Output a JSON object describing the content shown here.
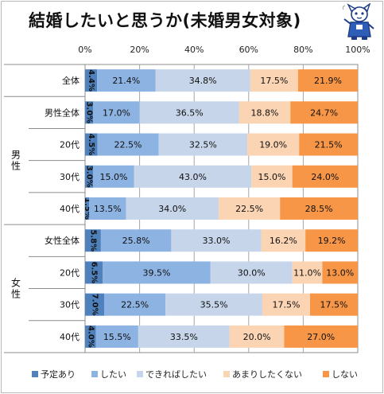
{
  "title": "結婚したいと思うか(未婚男女対象)",
  "chart_data": {
    "type": "bar",
    "stacked": true,
    "orientation": "horizontal",
    "xlim": [
      0,
      100
    ],
    "x_ticks": [
      "0%",
      "20%",
      "40%",
      "60%",
      "80%",
      "100%"
    ],
    "grid": true,
    "legend_position": "bottom",
    "groups": [
      {
        "label": "",
        "rows": [
          0
        ]
      },
      {
        "label": "男性",
        "rows": [
          1,
          2,
          3,
          4
        ]
      },
      {
        "label": "女性",
        "rows": [
          5,
          6,
          7,
          8
        ]
      }
    ],
    "categories": [
      "全体",
      "男性全体",
      "20代",
      "30代",
      "40代",
      "女性全体",
      "20代",
      "30代",
      "40代"
    ],
    "series": [
      {
        "name": "予定あり",
        "color": "#4f81bd",
        "values": [
          4.4,
          3.0,
          4.5,
          3.0,
          1.5,
          5.8,
          6.5,
          7.0,
          4.0
        ],
        "labels": [
          "4.4%",
          "3.0%",
          "4.5%",
          "3.0%",
          "1.5%",
          "5.8%",
          "6.5%",
          "7.0%",
          "4.0%"
        ]
      },
      {
        "name": "したい",
        "color": "#8db3e2",
        "values": [
          21.4,
          17.0,
          22.5,
          15.0,
          13.5,
          25.8,
          39.5,
          22.5,
          15.5
        ],
        "labels": [
          "21.4%",
          "17.0%",
          "22.5%",
          "15.0%",
          "13.5%",
          "25.8%",
          "39.5%",
          "22.5%",
          "15.5%"
        ]
      },
      {
        "name": "できればしたい",
        "color": "#c6d5ea",
        "values": [
          34.8,
          36.5,
          32.5,
          43.0,
          34.0,
          33.0,
          30.0,
          35.5,
          33.5
        ],
        "labels": [
          "34.8%",
          "36.5%",
          "32.5%",
          "43.0%",
          "34.0%",
          "33.0%",
          "30.0%",
          "35.5%",
          "33.5%"
        ]
      },
      {
        "name": "あまりしたくない",
        "color": "#fbd4b4",
        "values": [
          17.5,
          18.8,
          19.0,
          15.0,
          22.5,
          16.2,
          11.0,
          17.5,
          20.0
        ],
        "labels": [
          "17.5%",
          "18.8%",
          "19.0%",
          "15.0%",
          "22.5%",
          "16.2%",
          "11.0%",
          "17.5%",
          "20.0%"
        ]
      },
      {
        "name": "しない",
        "color": "#f79646",
        "values": [
          21.9,
          24.7,
          21.5,
          24.0,
          28.5,
          19.2,
          13.0,
          17.5,
          27.0
        ],
        "labels": [
          "21.9%",
          "24.7%",
          "21.5%",
          "24.0%",
          "28.5%",
          "19.2%",
          "13.0%",
          "17.5%",
          "27.0%"
        ]
      }
    ]
  }
}
